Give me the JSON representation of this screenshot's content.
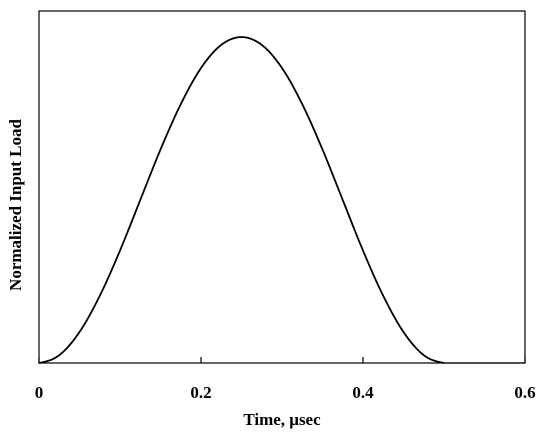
{
  "chart_data": {
    "type": "line",
    "title": "",
    "xlabel": "Time, μsec",
    "ylabel": "Normalized Input Load",
    "xlim": [
      0,
      0.6
    ],
    "ylim": [
      0,
      1.08
    ],
    "xticks": [
      "0",
      "0.2",
      "0.4",
      "0.6"
    ],
    "xtick_values": [
      0,
      0.2,
      0.4,
      0.6
    ],
    "grid": false,
    "y_tick_labels_shown": false,
    "series": [
      {
        "color": "#000000",
        "x": [
          0,
          0.025,
          0.05,
          0.075,
          0.1,
          0.125,
          0.15,
          0.175,
          0.2,
          0.225,
          0.25,
          0.275,
          0.3,
          0.325,
          0.35,
          0.375,
          0.4,
          0.425,
          0.45,
          0.475,
          0.5
        ],
        "y": [
          0,
          0.024,
          0.095,
          0.206,
          0.345,
          0.5,
          0.655,
          0.794,
          0.905,
          0.976,
          1.0,
          0.976,
          0.905,
          0.794,
          0.655,
          0.5,
          0.345,
          0.206,
          0.095,
          0.024,
          0
        ]
      }
    ]
  }
}
